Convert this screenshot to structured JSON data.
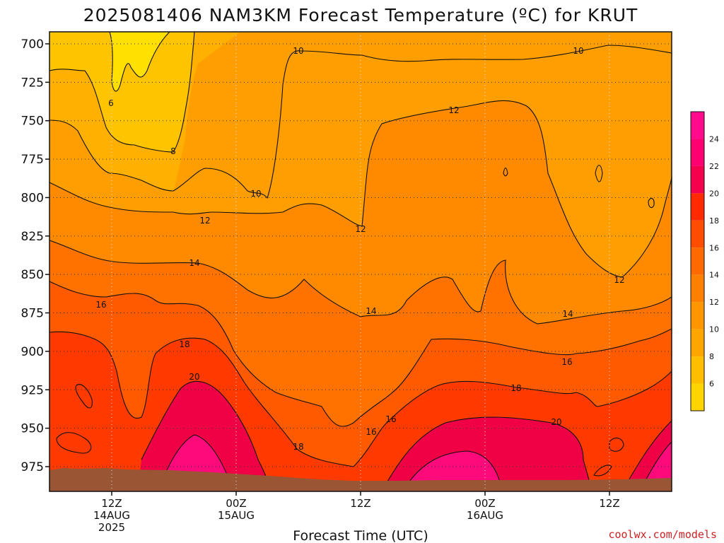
{
  "chart_data": {
    "type": "contour",
    "title": "2025081406 NAM3KM Forecast Temperature (ºC) for KRUT",
    "xlabel": "Forecast Time (UTC)",
    "ylabel": "",
    "credit": "coolwx.com/models",
    "y_axis": {
      "unit": "hPa",
      "inverted": true,
      "ticks": [
        700,
        725,
        750,
        775,
        800,
        825,
        850,
        875,
        900,
        925,
        950,
        975
      ]
    },
    "x_axis": {
      "ticks": [
        {
          "lines": [
            "12Z",
            "14AUG",
            "2025"
          ]
        },
        {
          "lines": [
            "00Z",
            "15AUG"
          ]
        },
        {
          "lines": [
            "12Z"
          ]
        },
        {
          "lines": [
            "00Z",
            "16AUG"
          ]
        },
        {
          "lines": [
            "12Z"
          ]
        }
      ]
    },
    "grid": true,
    "colorbar": {
      "placement": "right",
      "levels": [
        6,
        8,
        10,
        12,
        14,
        16,
        18,
        20,
        22,
        24
      ],
      "colors": [
        "#ffd400",
        "#ffbf00",
        "#ffa500",
        "#ff9600",
        "#ff7f00",
        "#ff6a00",
        "#ff4d00",
        "#ff2a00",
        "#f5004c",
        "#ff0070",
        "#ff0a8c"
      ]
    },
    "contour_labels": [
      "6",
      "8",
      "10",
      "10",
      "10",
      "12",
      "12",
      "12",
      "12",
      "14",
      "14",
      "14",
      "16",
      "16",
      "16",
      "16",
      "18",
      "18",
      "18",
      "20",
      "20"
    ],
    "terrain_color": "#9a5535"
  }
}
